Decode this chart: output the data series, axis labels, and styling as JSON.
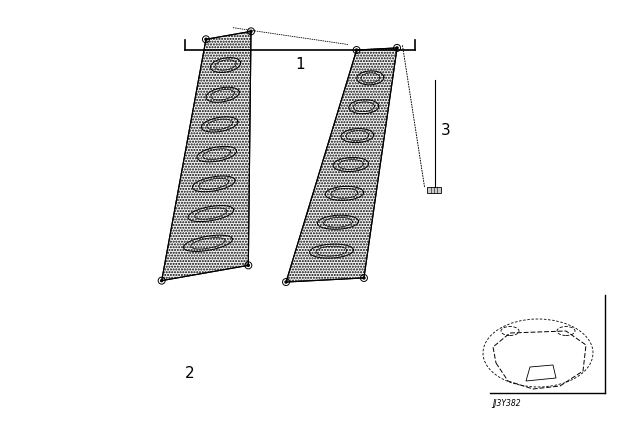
{
  "bg_color": "#ffffff",
  "fig_width": 6.4,
  "fig_height": 4.48,
  "dpi": 100,
  "label1": "1",
  "label2": "2",
  "label3": "3",
  "part_number": "JJ3Y382"
}
